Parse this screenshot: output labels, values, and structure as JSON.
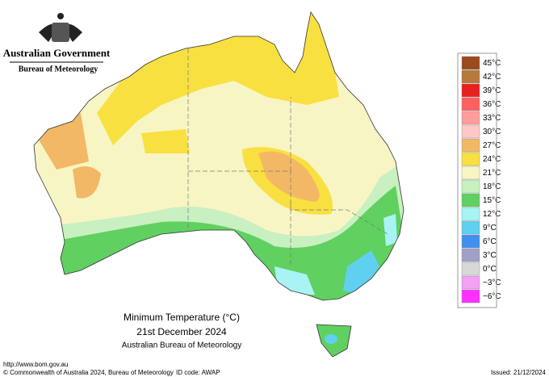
{
  "header": {
    "government": "Australian Government",
    "agency": "Bureau of Meteorology"
  },
  "map": {
    "title": "Minimum Temperature (°C)",
    "date": "21st December 2024",
    "source": "Australian Bureau of Meteorology"
  },
  "legend": [
    {
      "label": "45°C",
      "color": "#9c4a1e"
    },
    {
      "label": "42°C",
      "color": "#b87a3c"
    },
    {
      "label": "39°C",
      "color": "#e82020"
    },
    {
      "label": "36°C",
      "color": "#ff6060"
    },
    {
      "label": "33°C",
      "color": "#ff9c9c"
    },
    {
      "label": "30°C",
      "color": "#ffc8c8"
    },
    {
      "label": "27°C",
      "color": "#f2b866"
    },
    {
      "label": "24°C",
      "color": "#f8e040"
    },
    {
      "label": "21°C",
      "color": "#f8f5c4"
    },
    {
      "label": "18°C",
      "color": "#c8f0c0"
    },
    {
      "label": "15°C",
      "color": "#60d060"
    },
    {
      "label": "12°C",
      "color": "#a8f4f4"
    },
    {
      "label": "9°C",
      "color": "#60d0f0"
    },
    {
      "label": "6°C",
      "color": "#4090f0"
    },
    {
      "label": "3°C",
      "color": "#a0a0c8"
    },
    {
      "label": "0°C",
      "color": "#d8d8d8"
    },
    {
      "label": "−3°C",
      "color": "#f4a0f4"
    },
    {
      "label": "−6°C",
      "color": "#ff30ff"
    }
  ],
  "footer": {
    "url": "http://www.bom.gov.au",
    "copyright": "© Commonwealth of Australia 2024, Bureau of Meteorology",
    "id_code": "ID code: AWAP",
    "issued": "Issued: 21/12/2024"
  }
}
